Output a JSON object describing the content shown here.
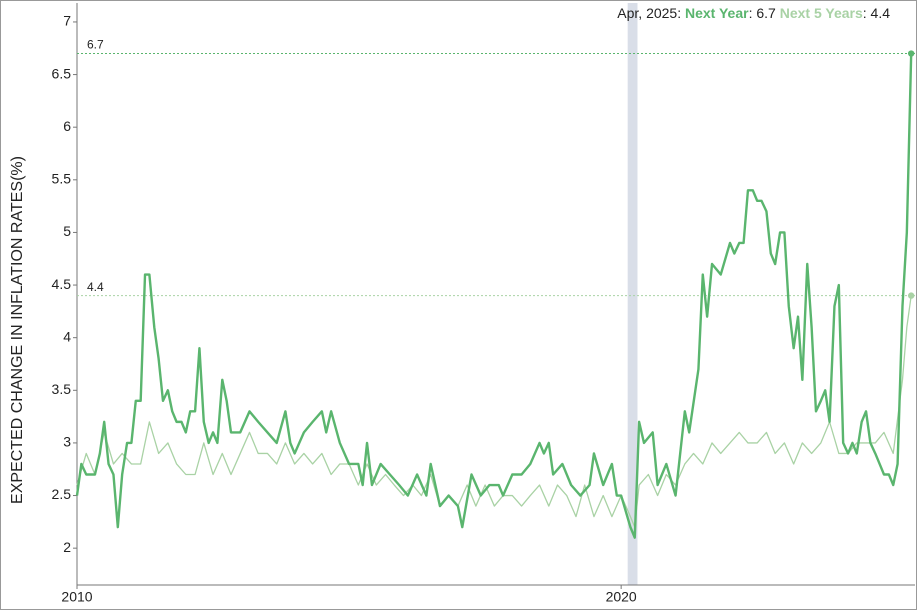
{
  "chart_data": {
    "type": "line",
    "y_label": "EXPECTED CHANGE IN INFLATION RATES(%)",
    "xlim": [
      2010,
      2025.4
    ],
    "xticks": [
      2010,
      2020
    ],
    "ylim": [
      1.65,
      7.18
    ],
    "yticks": [
      2,
      2.5,
      3,
      3.5,
      4,
      4.5,
      5,
      5.5,
      6,
      6.5,
      7
    ],
    "highlight": [
      2020.12,
      2020.3
    ],
    "highlight_color": "#d9dee8",
    "reference_lines": [
      6.7,
      4.4
    ],
    "hover": {
      "date": "Apr, 2025:",
      "labels": [
        ": 6.7",
        ": 4.4"
      ]
    },
    "series": [
      {
        "name": "Next Year",
        "color": "#5ab56e",
        "width": 2.4,
        "x": [
          2010.0,
          2010.08,
          2010.17,
          2010.33,
          2010.42,
          2010.5,
          2010.58,
          2010.67,
          2010.75,
          2010.83,
          2010.92,
          2011.0,
          2011.08,
          2011.17,
          2011.25,
          2011.33,
          2011.42,
          2011.5,
          2011.58,
          2011.67,
          2011.75,
          2011.83,
          2011.92,
          2012.0,
          2012.08,
          2012.17,
          2012.25,
          2012.33,
          2012.42,
          2012.5,
          2012.58,
          2012.67,
          2012.75,
          2012.83,
          2013.0,
          2013.17,
          2013.33,
          2013.5,
          2013.67,
          2013.83,
          2013.92,
          2014.0,
          2014.17,
          2014.33,
          2014.5,
          2014.58,
          2014.67,
          2014.83,
          2015.0,
          2015.17,
          2015.25,
          2015.33,
          2015.42,
          2015.58,
          2015.75,
          2015.92,
          2016.08,
          2016.25,
          2016.42,
          2016.5,
          2016.67,
          2016.83,
          2017.0,
          2017.08,
          2017.25,
          2017.42,
          2017.58,
          2017.75,
          2017.83,
          2018.0,
          2018.17,
          2018.33,
          2018.5,
          2018.58,
          2018.67,
          2018.75,
          2018.92,
          2019.08,
          2019.25,
          2019.42,
          2019.5,
          2019.67,
          2019.83,
          2019.92,
          2020.0,
          2020.17,
          2020.25,
          2020.33,
          2020.42,
          2020.58,
          2020.67,
          2020.83,
          2021.0,
          2021.17,
          2021.25,
          2021.42,
          2021.5,
          2021.58,
          2021.67,
          2021.83,
          2022.0,
          2022.08,
          2022.17,
          2022.25,
          2022.33,
          2022.42,
          2022.5,
          2022.58,
          2022.67,
          2022.75,
          2022.83,
          2022.92,
          2023.0,
          2023.08,
          2023.17,
          2023.25,
          2023.33,
          2023.42,
          2023.5,
          2023.58,
          2023.67,
          2023.75,
          2023.83,
          2023.92,
          2024.0,
          2024.08,
          2024.17,
          2024.25,
          2024.33,
          2024.42,
          2024.5,
          2024.58,
          2024.67,
          2024.75,
          2024.83,
          2024.92,
          2025.0,
          2025.08,
          2025.17,
          2025.25,
          2025.33
        ],
        "values": [
          2.5,
          2.8,
          2.7,
          2.7,
          2.9,
          3.2,
          2.8,
          2.7,
          2.2,
          2.7,
          3.0,
          3.0,
          3.4,
          3.4,
          4.6,
          4.6,
          4.1,
          3.8,
          3.4,
          3.5,
          3.3,
          3.2,
          3.2,
          3.1,
          3.3,
          3.3,
          3.9,
          3.2,
          3.0,
          3.1,
          3.0,
          3.6,
          3.4,
          3.1,
          3.1,
          3.3,
          3.2,
          3.1,
          3.0,
          3.3,
          3.0,
          2.9,
          3.1,
          3.2,
          3.3,
          3.1,
          3.3,
          3.0,
          2.8,
          2.8,
          2.6,
          3.0,
          2.6,
          2.8,
          2.7,
          2.6,
          2.5,
          2.7,
          2.5,
          2.8,
          2.4,
          2.5,
          2.4,
          2.2,
          2.7,
          2.5,
          2.6,
          2.6,
          2.5,
          2.7,
          2.7,
          2.8,
          3.0,
          2.9,
          3.0,
          2.7,
          2.8,
          2.6,
          2.5,
          2.6,
          2.9,
          2.6,
          2.8,
          2.5,
          2.5,
          2.2,
          2.1,
          3.2,
          3.0,
          3.1,
          2.6,
          2.8,
          2.5,
          3.3,
          3.1,
          3.7,
          4.6,
          4.2,
          4.7,
          4.6,
          4.9,
          4.8,
          4.9,
          4.9,
          5.4,
          5.4,
          5.3,
          5.3,
          5.2,
          4.8,
          4.7,
          5.0,
          5.0,
          4.3,
          3.9,
          4.2,
          3.6,
          4.7,
          4.1,
          3.3,
          3.4,
          3.5,
          3.2,
          4.3,
          4.5,
          3.0,
          2.9,
          3.0,
          2.9,
          3.2,
          3.3,
          3.0,
          2.9,
          2.8,
          2.7,
          2.7,
          2.6,
          2.8,
          4.3,
          5.0,
          6.7
        ]
      },
      {
        "name": "Next 5 Years",
        "color": "#a9d2a5",
        "width": 1.3,
        "x": [
          2010.0,
          2010.17,
          2010.33,
          2010.5,
          2010.67,
          2010.83,
          2011.0,
          2011.17,
          2011.33,
          2011.5,
          2011.67,
          2011.83,
          2012.0,
          2012.17,
          2012.33,
          2012.5,
          2012.67,
          2012.83,
          2013.0,
          2013.17,
          2013.33,
          2013.5,
          2013.67,
          2013.83,
          2014.0,
          2014.17,
          2014.33,
          2014.5,
          2014.67,
          2014.83,
          2015.0,
          2015.17,
          2015.33,
          2015.5,
          2015.67,
          2015.83,
          2016.0,
          2016.17,
          2016.33,
          2016.5,
          2016.67,
          2016.83,
          2017.0,
          2017.17,
          2017.33,
          2017.5,
          2017.67,
          2017.83,
          2018.0,
          2018.17,
          2018.33,
          2018.5,
          2018.67,
          2018.83,
          2019.0,
          2019.17,
          2019.33,
          2019.5,
          2019.67,
          2019.83,
          2020.0,
          2020.17,
          2020.25,
          2020.33,
          2020.5,
          2020.67,
          2020.83,
          2021.0,
          2021.17,
          2021.33,
          2021.5,
          2021.67,
          2021.83,
          2022.0,
          2022.17,
          2022.33,
          2022.5,
          2022.67,
          2022.83,
          2023.0,
          2023.17,
          2023.33,
          2023.5,
          2023.67,
          2023.83,
          2024.0,
          2024.17,
          2024.33,
          2024.5,
          2024.67,
          2024.83,
          2025.0,
          2025.17,
          2025.25,
          2025.33
        ],
        "values": [
          2.6,
          2.9,
          2.7,
          3.1,
          2.8,
          2.9,
          2.8,
          2.8,
          3.2,
          2.9,
          3.0,
          2.8,
          2.7,
          2.7,
          3.0,
          2.7,
          2.9,
          2.7,
          2.9,
          3.1,
          2.9,
          2.9,
          2.8,
          3.0,
          2.8,
          2.9,
          2.8,
          2.9,
          2.7,
          2.8,
          2.8,
          2.6,
          2.8,
          2.6,
          2.7,
          2.6,
          2.5,
          2.6,
          2.5,
          2.7,
          2.4,
          2.5,
          2.4,
          2.6,
          2.4,
          2.6,
          2.4,
          2.5,
          2.5,
          2.4,
          2.5,
          2.6,
          2.4,
          2.6,
          2.5,
          2.3,
          2.6,
          2.3,
          2.5,
          2.3,
          2.5,
          2.3,
          2.2,
          2.6,
          2.7,
          2.5,
          2.7,
          2.6,
          2.8,
          2.9,
          2.8,
          3.0,
          2.9,
          3.0,
          3.1,
          3.0,
          3.0,
          3.1,
          2.9,
          3.0,
          2.8,
          3.0,
          2.9,
          3.0,
          3.2,
          2.9,
          2.9,
          3.0,
          3.0,
          3.0,
          3.1,
          2.9,
          3.6,
          4.1,
          4.4
        ]
      }
    ]
  }
}
